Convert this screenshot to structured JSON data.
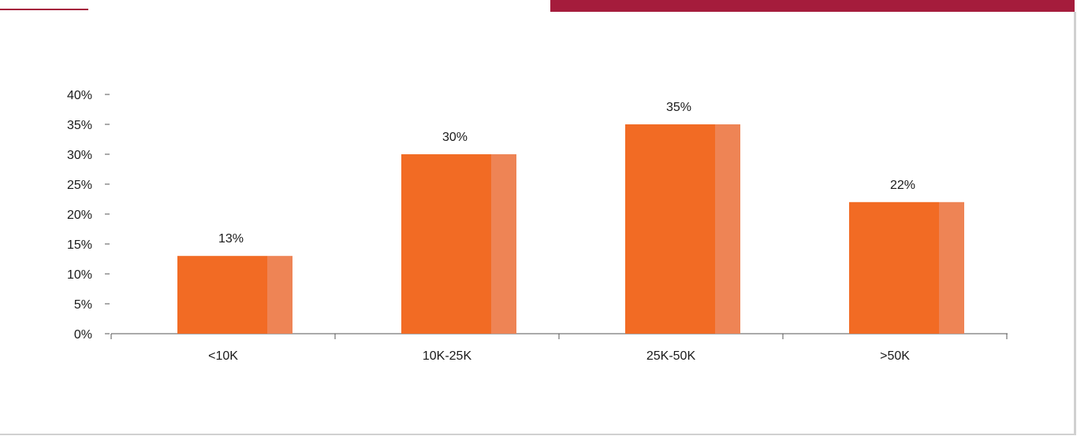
{
  "colors": {
    "accent": "#a51c3c",
    "bar_main": "#f26b24",
    "bar_shade": "#ee8455",
    "axis": "#555555",
    "frame": "#d0d0d0"
  },
  "chart_data": {
    "type": "bar",
    "title": "",
    "xlabel": "",
    "ylabel": "",
    "categories": [
      "<10K",
      "10K-25K",
      "25K-50K",
      ">50K"
    ],
    "values": [
      13,
      30,
      35,
      22
    ],
    "value_labels": [
      "13%",
      "30%",
      "35%",
      "22%"
    ],
    "ylim": [
      0,
      40
    ],
    "yticks": [
      0,
      5,
      10,
      15,
      20,
      25,
      30,
      35,
      40
    ],
    "ytick_labels": [
      "0%",
      "5%",
      "10%",
      "15%",
      "20%",
      "25%",
      "30%",
      "35%",
      "40%"
    ],
    "grid": false,
    "legend": "none"
  }
}
